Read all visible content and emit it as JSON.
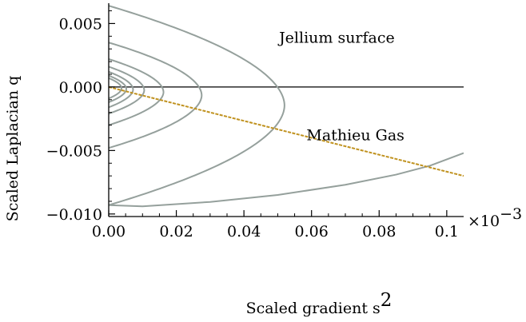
{
  "chart_data": {
    "type": "line",
    "xlabel": "Scaled gradient s",
    "xlabel_superscript": "2",
    "ylabel": "Scaled Laplacian q",
    "x_multiplier_label": "×10",
    "x_multiplier_exponent": "−3",
    "xlim": [
      0.0,
      0.105
    ],
    "ylim": [
      -0.0102,
      0.0066
    ],
    "x_ticks": [
      {
        "value": 0.0,
        "label": "0.00"
      },
      {
        "value": 0.02,
        "label": "0.02"
      },
      {
        "value": 0.04,
        "label": "0.04"
      },
      {
        "value": 0.06,
        "label": "0.06"
      },
      {
        "value": 0.08,
        "label": "0.08"
      },
      {
        "value": 0.1,
        "label": "0.1"
      }
    ],
    "y_ticks": [
      {
        "value": 0.005,
        "label": "0.005"
      },
      {
        "value": 0.0,
        "label": "0.000"
      },
      {
        "value": -0.005,
        "label": "−0.005"
      },
      {
        "value": -0.01,
        "label": "−0.010"
      }
    ],
    "grid": false,
    "colors": {
      "jellium": "#95a09c",
      "mathieu": "#c0921f",
      "axis": "#000000",
      "zero_line": "#000000"
    },
    "series": [
      {
        "name": "Jellium surface",
        "kind": "closed-loops",
        "loops": [
          {
            "top": 0.0064,
            "bottom": -0.0093,
            "tip_x": 0.052
          },
          {
            "top": 0.0035,
            "bottom": -0.0048,
            "tip_x": 0.0275
          },
          {
            "top": 0.0022,
            "bottom": -0.003,
            "tip_x": 0.0162
          },
          {
            "top": 0.0016,
            "bottom": -0.0021,
            "tip_x": 0.0105
          },
          {
            "top": 0.0012,
            "bottom": -0.0016,
            "tip_x": 0.0072
          },
          {
            "top": 0.0009,
            "bottom": -0.0012,
            "tip_x": 0.0052
          },
          {
            "top": 0.0007,
            "bottom": -0.0009,
            "tip_x": 0.0038
          }
        ],
        "open_branch": [
          [
            0.0,
            -0.0093
          ],
          [
            0.01,
            -0.0094
          ],
          [
            0.03,
            -0.00905
          ],
          [
            0.05,
            -0.0085
          ],
          [
            0.07,
            -0.0077
          ],
          [
            0.085,
            -0.0069
          ],
          [
            0.095,
            -0.0062
          ],
          [
            0.105,
            -0.0052
          ]
        ]
      },
      {
        "name": "Mathieu Gas",
        "kind": "line",
        "points": [
          [
            0.0,
            0.0
          ],
          [
            0.105,
            -0.007
          ]
        ]
      }
    ],
    "annotations": [
      {
        "text": "Jellium surface",
        "x": 0.0675,
        "y": 0.0035,
        "target": "jellium-label"
      },
      {
        "text": "Mathieu Gas",
        "x": 0.073,
        "y": -0.0042,
        "target": "mathieu-label"
      }
    ]
  }
}
